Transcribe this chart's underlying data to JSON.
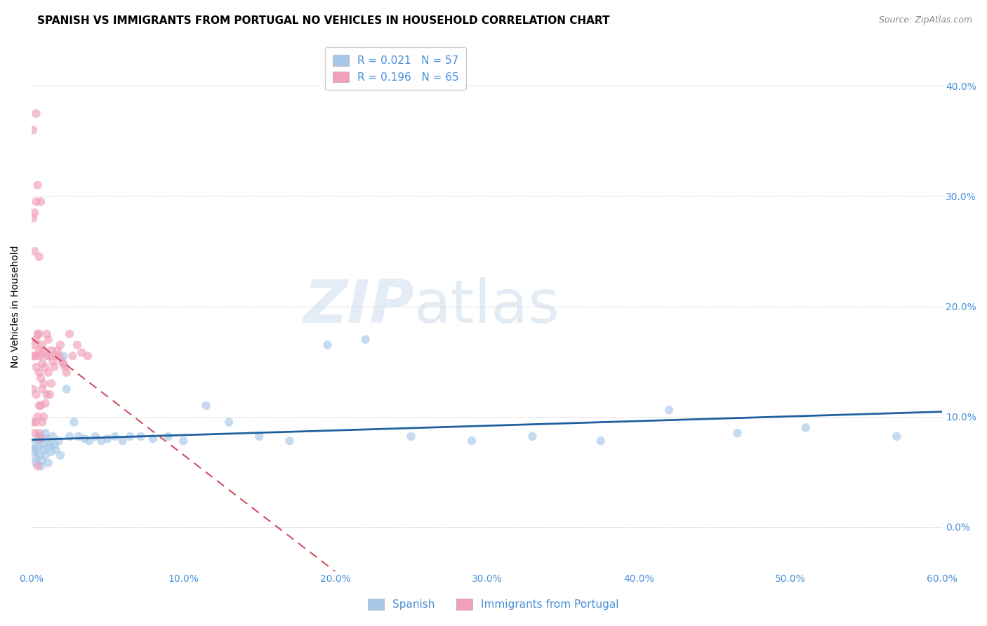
{
  "title": "SPANISH VS IMMIGRANTS FROM PORTUGAL NO VEHICLES IN HOUSEHOLD CORRELATION CHART",
  "source": "Source: ZipAtlas.com",
  "ylabel": "No Vehicles in Household",
  "watermark": "ZIPatlas",
  "legend_bottom": [
    "Spanish",
    "Immigrants from Portugal"
  ],
  "series": [
    {
      "label": "Spanish",
      "R": 0.021,
      "N": 57,
      "color_scatter": "#a8c8e8",
      "color_line": "#2060a0",
      "line_style": "solid",
      "x": [
        0.001,
        0.002,
        0.002,
        0.003,
        0.003,
        0.004,
        0.004,
        0.005,
        0.005,
        0.006,
        0.006,
        0.007,
        0.007,
        0.008,
        0.009,
        0.009,
        0.01,
        0.011,
        0.011,
        0.012,
        0.013,
        0.014,
        0.015,
        0.016,
        0.018,
        0.019,
        0.021,
        0.023,
        0.025,
        0.028,
        0.031,
        0.035,
        0.038,
        0.042,
        0.046,
        0.05,
        0.055,
        0.06,
        0.065,
        0.072,
        0.08,
        0.09,
        0.1,
        0.115,
        0.13,
        0.15,
        0.17,
        0.195,
        0.22,
        0.25,
        0.29,
        0.33,
        0.375,
        0.42,
        0.465,
        0.51,
        0.57
      ],
      "y": [
        0.075,
        0.07,
        0.068,
        0.062,
        0.058,
        0.08,
        0.072,
        0.065,
        0.078,
        0.055,
        0.082,
        0.06,
        0.075,
        0.07,
        0.085,
        0.065,
        0.08,
        0.072,
        0.058,
        0.075,
        0.068,
        0.082,
        0.075,
        0.07,
        0.078,
        0.065,
        0.155,
        0.125,
        0.082,
        0.095,
        0.082,
        0.08,
        0.078,
        0.082,
        0.078,
        0.08,
        0.082,
        0.078,
        0.082,
        0.082,
        0.08,
        0.082,
        0.078,
        0.11,
        0.095,
        0.082,
        0.078,
        0.165,
        0.17,
        0.082,
        0.078,
        0.082,
        0.078,
        0.106,
        0.085,
        0.09,
        0.082
      ]
    },
    {
      "label": "Immigrants from Portugal",
      "R": 0.196,
      "N": 65,
      "color_scatter": "#f0a0b8",
      "color_line": "#d05060",
      "line_style": "dashed",
      "x": [
        0.001,
        0.001,
        0.001,
        0.002,
        0.002,
        0.002,
        0.003,
        0.003,
        0.003,
        0.003,
        0.004,
        0.004,
        0.004,
        0.005,
        0.005,
        0.005,
        0.005,
        0.005,
        0.006,
        0.006,
        0.006,
        0.006,
        0.007,
        0.007,
        0.007,
        0.007,
        0.008,
        0.008,
        0.008,
        0.009,
        0.009,
        0.01,
        0.01,
        0.01,
        0.011,
        0.011,
        0.012,
        0.012,
        0.013,
        0.013,
        0.014,
        0.015,
        0.016,
        0.017,
        0.018,
        0.019,
        0.02,
        0.021,
        0.022,
        0.023,
        0.025,
        0.027,
        0.03,
        0.033,
        0.037,
        0.001,
        0.002,
        0.003,
        0.002,
        0.001,
        0.003,
        0.004,
        0.005,
        0.006,
        0.004
      ],
      "y": [
        0.155,
        0.125,
        0.095,
        0.155,
        0.085,
        0.165,
        0.17,
        0.145,
        0.12,
        0.095,
        0.175,
        0.155,
        0.1,
        0.175,
        0.16,
        0.14,
        0.11,
        0.085,
        0.155,
        0.135,
        0.11,
        0.08,
        0.165,
        0.148,
        0.125,
        0.095,
        0.16,
        0.13,
        0.1,
        0.145,
        0.112,
        0.175,
        0.155,
        0.12,
        0.17,
        0.14,
        0.155,
        0.12,
        0.16,
        0.13,
        0.15,
        0.145,
        0.155,
        0.16,
        0.155,
        0.165,
        0.15,
        0.148,
        0.145,
        0.14,
        0.175,
        0.155,
        0.165,
        0.158,
        0.155,
        0.36,
        0.285,
        0.375,
        0.25,
        0.28,
        0.295,
        0.31,
        0.245,
        0.295,
        0.055
      ]
    }
  ],
  "xlim": [
    0.0,
    0.6
  ],
  "ylim": [
    -0.04,
    0.44
  ],
  "xtick_vals": [
    0.0,
    0.1,
    0.2,
    0.3,
    0.4,
    0.5,
    0.6
  ],
  "xtick_labels": [
    "0.0%",
    "10.0%",
    "20.0%",
    "30.0%",
    "40.0%",
    "50.0%",
    "60.0%"
  ],
  "ytick_vals": [
    0.0,
    0.1,
    0.2,
    0.3,
    0.4
  ],
  "ytick_labels": [
    "0.0%",
    "10.0%",
    "20.0%",
    "30.0%",
    "40.0%"
  ],
  "title_fontsize": 11,
  "axis_label_fontsize": 10,
  "tick_fontsize": 10,
  "scatter_size": 80,
  "scatter_alpha": 0.65,
  "grid_color": "#d8d8d8",
  "background_color": "#ffffff",
  "tick_color": "#4a90d9"
}
